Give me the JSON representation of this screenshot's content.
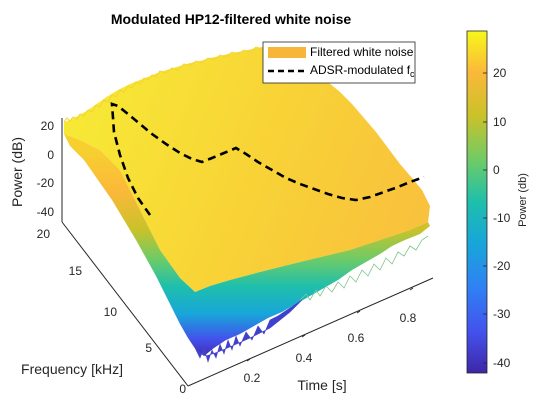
{
  "chart_data": {
    "type": "surface",
    "title": "Modulated HP12-filtered white noise",
    "xlabel": "Time [s]",
    "ylabel": "Frequency [kHz]",
    "zlabel": "Power (dB)",
    "x_ticks": [
      "0.2",
      "0.4",
      "0.6",
      "0.8"
    ],
    "y_ticks": [
      "0",
      "5",
      "10",
      "15",
      "20"
    ],
    "z_ticks": [
      "20",
      "0",
      "-20",
      "-40"
    ],
    "xlim": [
      0,
      1
    ],
    "ylim": [
      0,
      20
    ],
    "zlim": [
      -45,
      25
    ],
    "grid": false,
    "legend": {
      "location": "top-right",
      "entries": [
        {
          "label": "Filtered white noise",
          "style": "patch",
          "color": "#f7b53a"
        },
        {
          "label": "ADSR-modulated f",
          "subscript": "c",
          "style": "dashed",
          "color": "#000000"
        }
      ]
    },
    "colorbar": {
      "label": "Power (db)",
      "ticks": [
        "20",
        "10",
        "0",
        "-10",
        "-20",
        "-30",
        "-40"
      ],
      "range": [
        -43,
        29
      ],
      "colormap": "parula"
    },
    "surface": {
      "description_values": "power in dB, approx: ~18 dB above fc, rolling off toward ~-40 dB near 0 kHz",
      "plateau_db": 18,
      "min_db": -42
    },
    "series": [
      {
        "name": "ADSR-modulated f",
        "style": "dashed",
        "t": [
          0.0,
          0.25,
          0.35,
          0.7,
          1.0
        ],
        "fc_khz": [
          20.0,
          7.5,
          10.0,
          5.5,
          8.0
        ]
      }
    ]
  }
}
